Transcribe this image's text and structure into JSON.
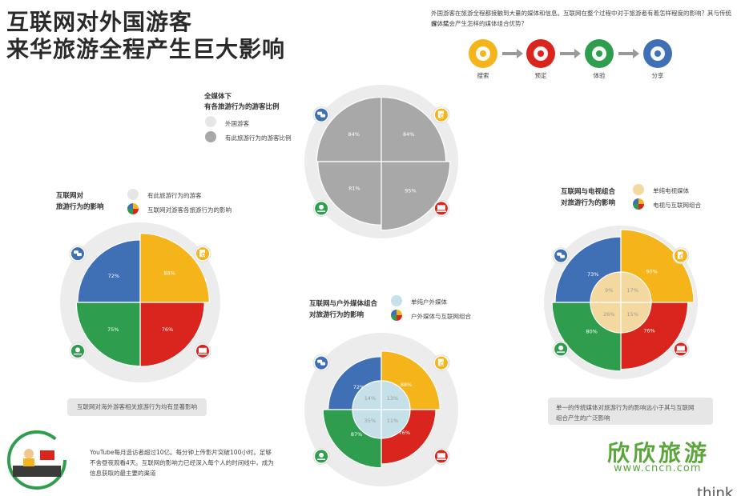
{
  "header": {
    "title_line1": "互联网对外国游客",
    "title_line2": "来华旅游全程产生巨大影响",
    "intro_line1": "外国游客在旅游全程都接触到大量的媒体和信息。互联网在整个过程中对于旅游者有着怎样程度的影响？其与传统媒体结",
    "intro_line2": "合，又会产生怎样的媒体组合优势？"
  },
  "flow": {
    "steps": [
      {
        "label": "搜索",
        "icon": "search-document-icon",
        "color": "#f4b41a"
      },
      {
        "label": "预定",
        "icon": "laptop-icon",
        "color": "#d9251d"
      },
      {
        "label": "体验",
        "icon": "location-pin-icon",
        "color": "#2e9d4e"
      },
      {
        "label": "分享",
        "icon": "chat-bubbles-icon",
        "color": "#3f6fb5"
      }
    ]
  },
  "colors": {
    "blue": "#3f6fb5",
    "yellow": "#f4b41a",
    "red": "#d9251d",
    "green": "#2e9d4e",
    "gray": "#a8a8a8",
    "ring": "#ececec"
  },
  "chart_data": [
    {
      "type": "pie",
      "title_line1": "全媒体下",
      "title_line2": "有各旅游行为的游客比例",
      "legend": [
        "外国游客",
        "有此旅游行为的游客比例"
      ],
      "categories": [
        "分享",
        "搜索",
        "预定",
        "体验"
      ],
      "values": [
        84,
        84,
        95,
        81
      ],
      "labels": [
        "84%",
        "84%",
        "95%",
        "81%"
      ]
    },
    {
      "type": "pie",
      "title_line1": "互联网对",
      "title_line2": "旅游行为的影响",
      "legend": [
        "有此旅游行为的游客",
        "互联网对游客各旅游行为的影响"
      ],
      "categories": [
        "分享",
        "搜索",
        "预定",
        "体验"
      ],
      "values": [
        72,
        88,
        76,
        75
      ],
      "labels": [
        "72%",
        "88%",
        "76%",
        "75%"
      ],
      "caption": "互联网对海外游客相关旅游行为均有显著影响"
    },
    {
      "type": "pie",
      "title_line1": "互联网与户外媒体组合",
      "title_line2": "对旅游行为的影响",
      "legend": [
        "单纯户外媒体",
        "户外媒体与互联网组合"
      ],
      "categories": [
        "分享",
        "搜索",
        "预定",
        "体验"
      ],
      "series": [
        {
          "values": [
            72,
            88,
            76,
            87
          ],
          "labels": [
            "72%",
            "88%",
            "76%",
            "87%"
          ]
        },
        {
          "values": [
            14,
            13,
            11,
            35
          ],
          "labels": [
            "14%",
            "13%",
            "11%",
            "35%"
          ]
        }
      ]
    },
    {
      "type": "pie",
      "title_line1": "互联网与电视组合",
      "title_line2": "对旅游行为的影响",
      "legend": [
        "单纯电视媒体",
        "电视与互联网组合"
      ],
      "categories": [
        "分享",
        "搜索",
        "预定",
        "体验"
      ],
      "series": [
        {
          "values": [
            73,
            90,
            76,
            80
          ],
          "labels": [
            "73%",
            "90%",
            "76%",
            "80%"
          ]
        },
        {
          "values": [
            9,
            17,
            15,
            26
          ],
          "labels": [
            "9%",
            "17%",
            "15%",
            "26%"
          ]
        }
      ],
      "caption_line1": "单一的传统媒体对旅游行为的影响远小于其与互联网",
      "caption_line2": "组合产生的广泛影响"
    }
  ],
  "footer": {
    "youtube_line1": "YouTube每月造访者超过10亿。每分钟上传影片突破100小时。足够",
    "youtube_line2": "不舍昼夜观看4天。互联网的影响力已经深入每个人的时间线中，成为",
    "youtube_line3": "信息获取的最主要的渠道",
    "watermark": "欣欣旅游",
    "watermark_url": "www.cncn.com",
    "corner_text": "think"
  }
}
